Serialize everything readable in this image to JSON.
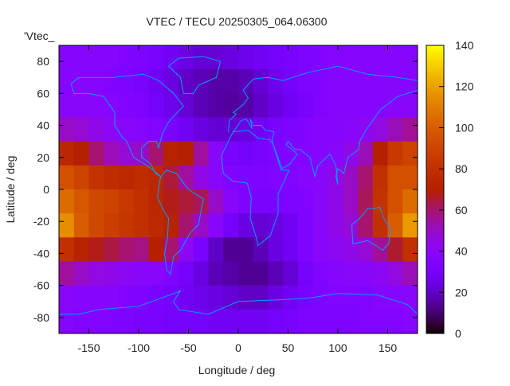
{
  "chart_data": {
    "type": "heatmap",
    "title": "VTEC / TECU 20250305_064.06300",
    "key_label": "'Vtec_",
    "xlabel": "Longitude / deg",
    "ylabel": "Latitude / deg",
    "xlim": [
      -180,
      180
    ],
    "ylim": [
      -90,
      90
    ],
    "xticks": [
      -150,
      -100,
      -50,
      0,
      50,
      100,
      150
    ],
    "xtick_labels": [
      "-150",
      "-100",
      "-50",
      "0",
      "50",
      "100",
      "150"
    ],
    "yticks": [
      80,
      60,
      40,
      20,
      0,
      -20,
      -40,
      -60,
      -80
    ],
    "ytick_labels": [
      "80",
      "60",
      "40",
      "20",
      "0",
      "-20",
      "-40",
      "-60",
      "-80"
    ],
    "colorbar": {
      "range": [
        0,
        140
      ],
      "ticks": [
        0,
        20,
        40,
        60,
        80,
        100,
        120,
        140
      ],
      "tick_labels": [
        "0",
        "20",
        "40",
        "60",
        "80",
        "100",
        "120",
        "140"
      ],
      "palette": "black-blue-violet-yellow"
    },
    "coastline_color": "#00a0ff",
    "grid_lon_centers": [
      -172.5,
      -157.5,
      -142.5,
      -127.5,
      -112.5,
      -97.5,
      -82.5,
      -67.5,
      -52.5,
      -37.5,
      -22.5,
      -7.5,
      7.5,
      22.5,
      37.5,
      52.5,
      67.5,
      82.5,
      97.5,
      112.5,
      127.5,
      142.5,
      157.5,
      172.5
    ],
    "grid_lat_centers": [
      82.5,
      67.5,
      52.5,
      37.5,
      22.5,
      7.5,
      -7.5,
      -22.5,
      -37.5,
      -52.5,
      -67.5,
      -82.5
    ],
    "values": [
      [
        38,
        38,
        38,
        38,
        36,
        34,
        32,
        28,
        25,
        22,
        22,
        24,
        26,
        28,
        30,
        32,
        34,
        36,
        38,
        38,
        38,
        38,
        38,
        38
      ],
      [
        38,
        38,
        38,
        36,
        34,
        32,
        28,
        24,
        20,
        18,
        16,
        16,
        18,
        22,
        26,
        30,
        34,
        36,
        38,
        38,
        38,
        38,
        38,
        38
      ],
      [
        40,
        40,
        40,
        38,
        36,
        34,
        30,
        26,
        22,
        18,
        16,
        15,
        16,
        20,
        24,
        28,
        32,
        36,
        38,
        38,
        38,
        38,
        40,
        40
      ],
      [
        50,
        48,
        44,
        42,
        40,
        38,
        36,
        32,
        28,
        24,
        22,
        22,
        24,
        28,
        32,
        34,
        36,
        38,
        38,
        40,
        42,
        46,
        52,
        56
      ],
      [
        75,
        70,
        60,
        52,
        48,
        50,
        60,
        72,
        70,
        55,
        40,
        32,
        30,
        32,
        34,
        36,
        36,
        38,
        40,
        44,
        52,
        70,
        85,
        90
      ],
      [
        95,
        90,
        82,
        78,
        76,
        78,
        75,
        65,
        55,
        45,
        40,
        36,
        34,
        34,
        36,
        36,
        38,
        40,
        44,
        50,
        60,
        80,
        95,
        95
      ],
      [
        105,
        98,
        92,
        90,
        85,
        80,
        75,
        68,
        65,
        62,
        50,
        40,
        34,
        32,
        32,
        34,
        36,
        40,
        44,
        50,
        62,
        82,
        95,
        105
      ],
      [
        115,
        100,
        92,
        88,
        84,
        80,
        76,
        72,
        60,
        50,
        40,
        30,
        24,
        22,
        24,
        28,
        34,
        40,
        44,
        48,
        60,
        80,
        100,
        118
      ],
      [
        80,
        72,
        68,
        64,
        60,
        58,
        70,
        60,
        42,
        32,
        20,
        14,
        14,
        18,
        24,
        28,
        34,
        40,
        42,
        44,
        48,
        56,
        66,
        80
      ],
      [
        55,
        50,
        46,
        44,
        42,
        40,
        40,
        36,
        30,
        24,
        18,
        16,
        14,
        14,
        18,
        22,
        30,
        36,
        38,
        40,
        40,
        42,
        46,
        52
      ],
      [
        40,
        38,
        38,
        38,
        36,
        34,
        32,
        30,
        28,
        26,
        24,
        22,
        20,
        20,
        24,
        28,
        32,
        34,
        36,
        36,
        36,
        38,
        38,
        40
      ],
      [
        38,
        36,
        36,
        36,
        34,
        32,
        32,
        30,
        30,
        30,
        28,
        28,
        28,
        28,
        30,
        32,
        34,
        34,
        34,
        34,
        36,
        36,
        36,
        38
      ]
    ]
  }
}
